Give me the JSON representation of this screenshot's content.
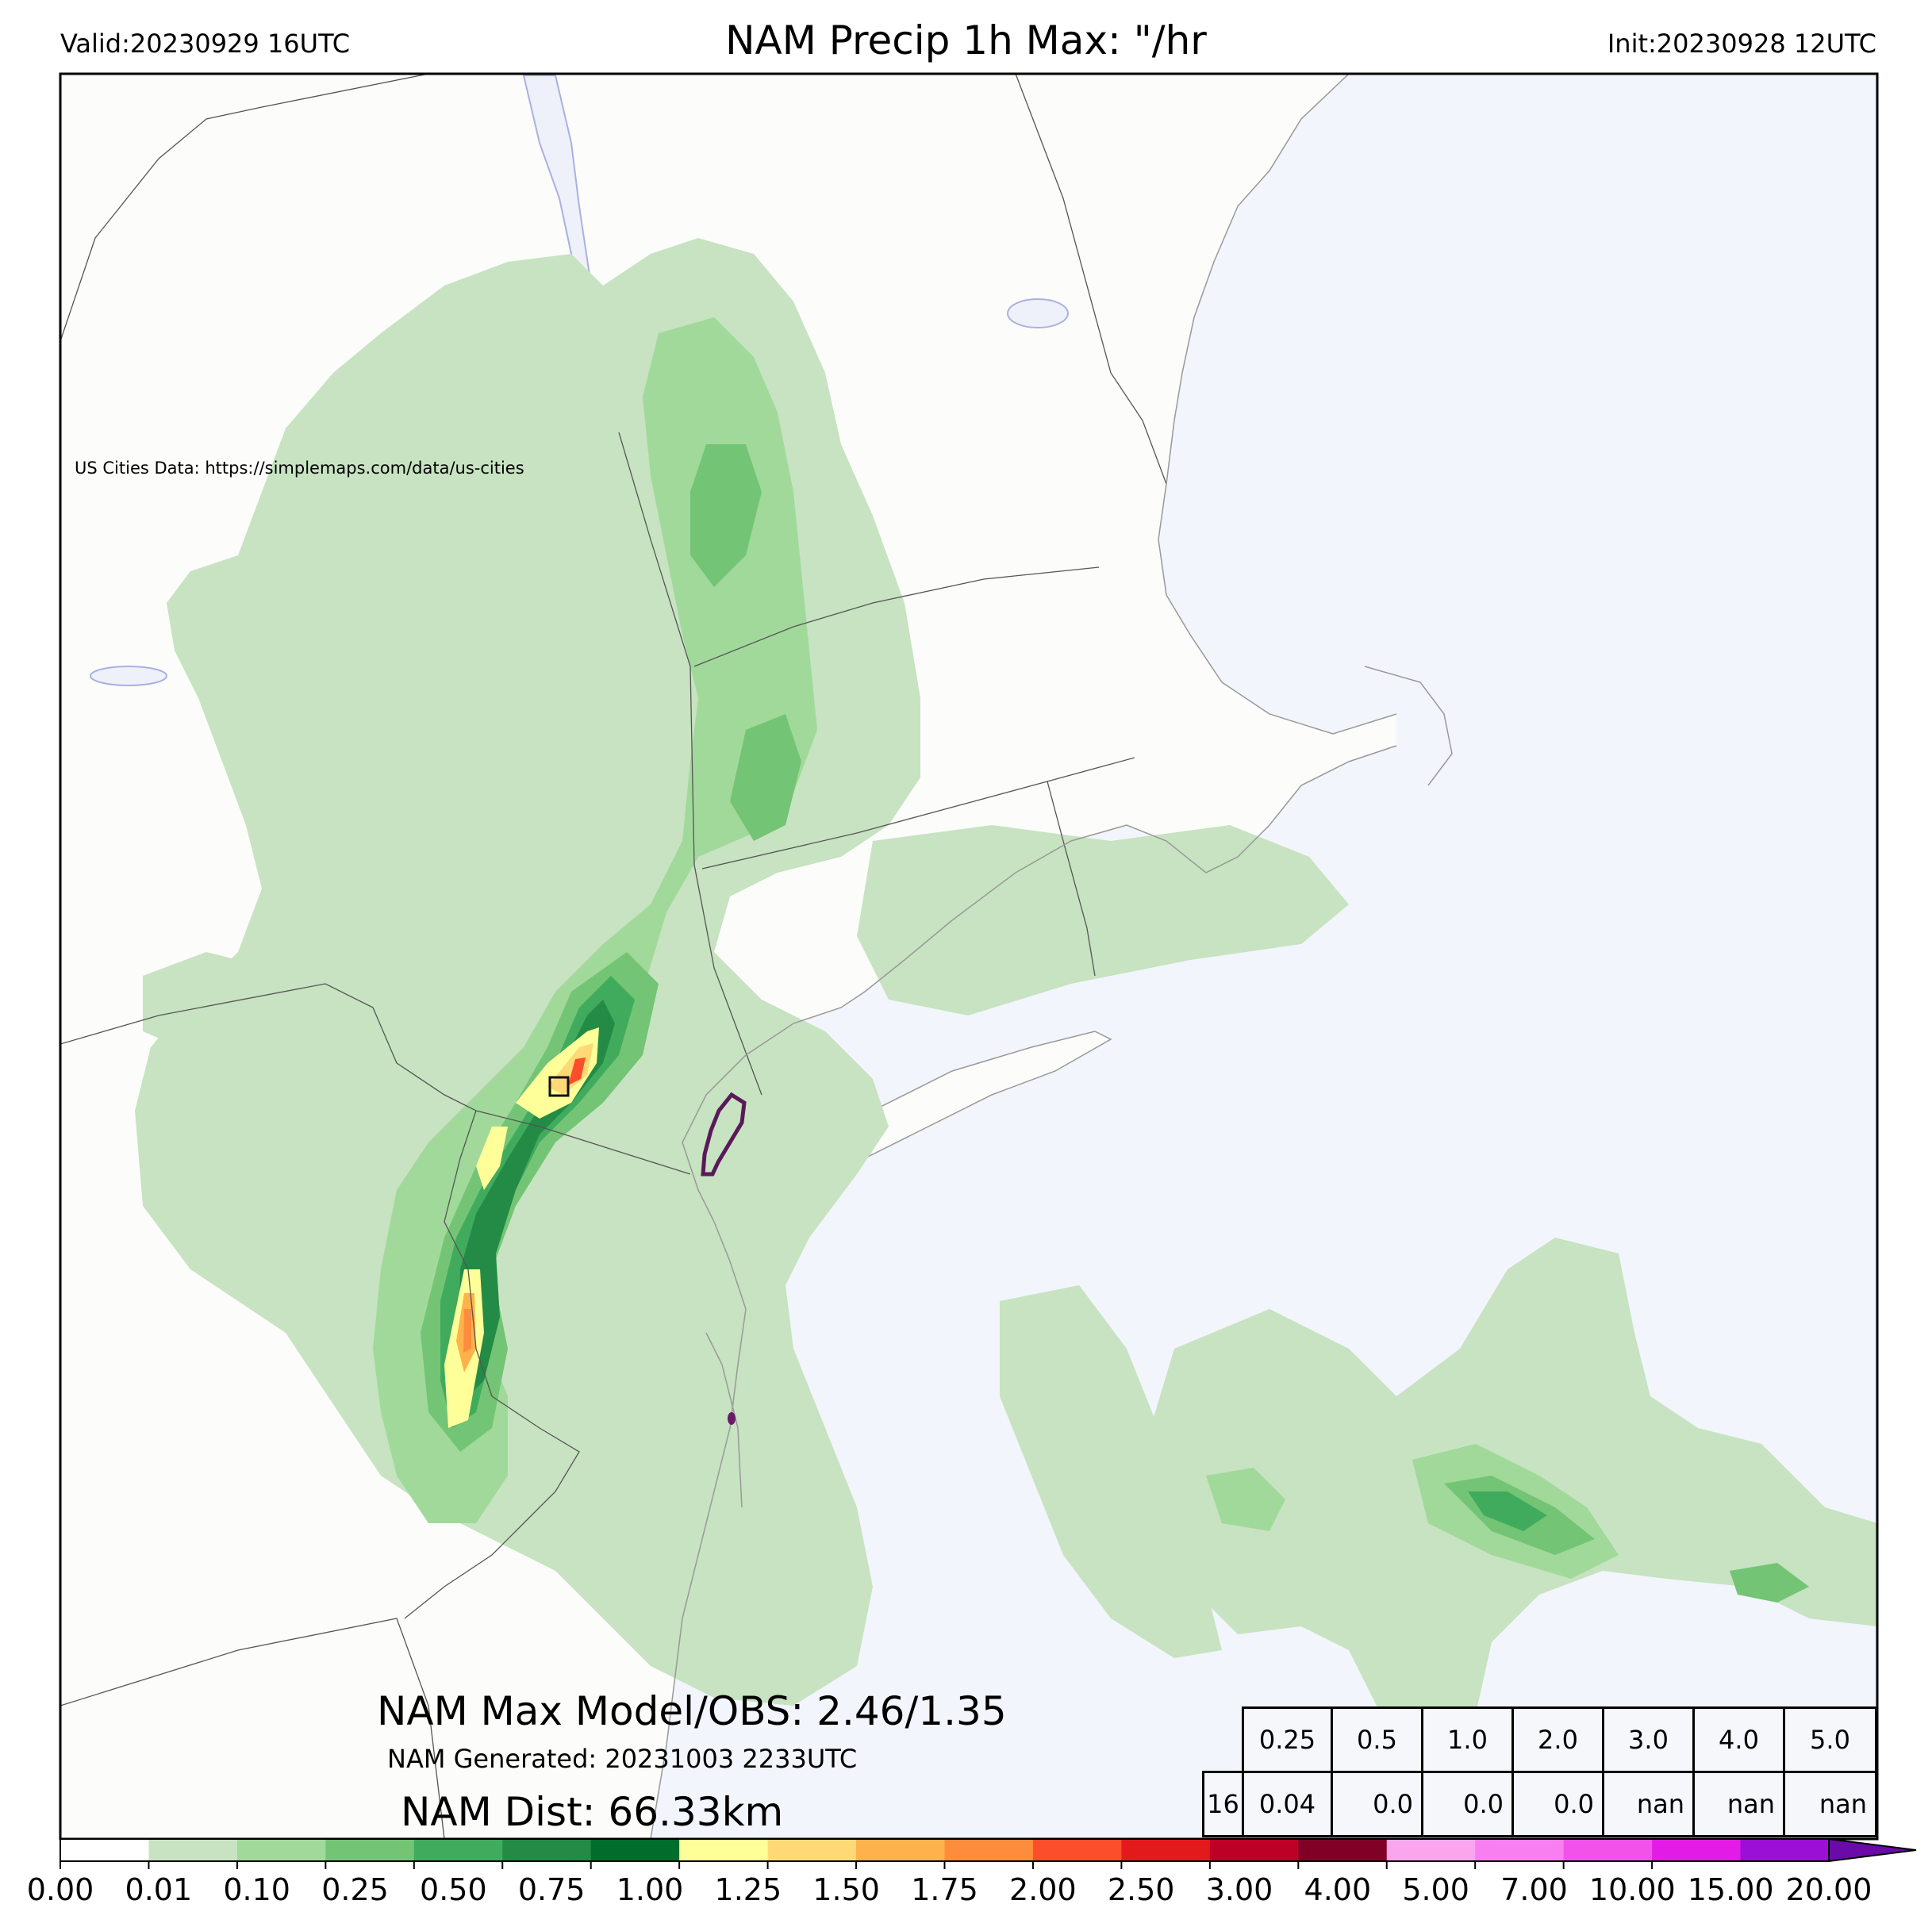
{
  "header": {
    "valid": "Valid:20230929 16UTC",
    "title": "NAM Precip 1h Max: \"/hr",
    "init": "Init:20230928 12UTC"
  },
  "map": {
    "credit": "US Cities Data: https://simplemaps.com/data/us-cities",
    "ocean_color": "#f2f5fb",
    "land_color": "#fcfcfb",
    "lake_color": "#eef1fa"
  },
  "stats": {
    "max_line": "NAM Max Model/OBS: 2.46/1.35",
    "generated_line": "NAM Generated: 20231003 2233UTC",
    "dist_line": "NAM Dist: 66.33km"
  },
  "table": {
    "thresholds": [
      "0.25",
      "0.5",
      "1.0",
      "2.0",
      "3.0",
      "4.0",
      "5.0"
    ],
    "row_label": "16",
    "values": [
      "0.04",
      "0.0",
      "0.0",
      "0.0",
      "nan",
      "nan",
      "nan"
    ]
  },
  "colorbar": {
    "labels": [
      "0.00",
      "0.01",
      "0.10",
      "0.25",
      "0.50",
      "0.75",
      "1.00",
      "1.25",
      "1.50",
      "1.75",
      "2.00",
      "2.50",
      "3.00",
      "4.00",
      "5.00",
      "7.00",
      "10.00",
      "15.00",
      "20.00"
    ],
    "colors": [
      "#ffffff",
      "#c7e3c1",
      "#a1d99b",
      "#74c476",
      "#41ab5d",
      "#238b45",
      "#006d2c",
      "#ffff99",
      "#fed976",
      "#feb24c",
      "#fd8d3c",
      "#fc4e2a",
      "#e31a1c",
      "#bd0026",
      "#800026",
      "#f9a6ef",
      "#f77ff0",
      "#f252ea",
      "#e31be6",
      "#9c0fd6"
    ],
    "extend_color": "#6a0aa8"
  }
}
